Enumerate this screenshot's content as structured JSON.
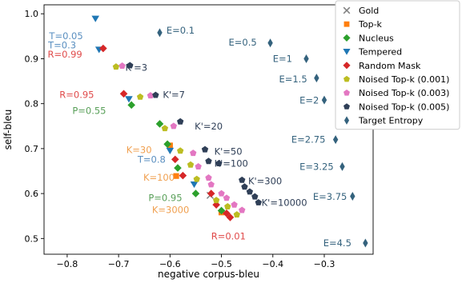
{
  "chart_data": {
    "type": "scatter",
    "xlabel": "negative corpus-bleu",
    "ylabel": "self-bleu",
    "xlim": [
      -0.845,
      -0.205
    ],
    "ylim": [
      0.465,
      1.02
    ],
    "xticks": [
      -0.8,
      -0.7,
      -0.6,
      -0.5,
      -0.4,
      -0.3
    ],
    "xtick_labels": [
      "−0.8",
      "−0.7",
      "−0.6",
      "−0.5",
      "−0.4",
      "−0.3"
    ],
    "yticks": [
      0.5,
      0.6,
      0.7,
      0.8,
      0.9,
      1.0
    ],
    "ytick_labels": [
      "0.5",
      "0.6",
      "0.7",
      "0.8",
      "0.9",
      "1.0"
    ],
    "grid": false,
    "legend_position": "top-right, outside plot",
    "series": [
      {
        "name": "Gold",
        "marker": "x",
        "color": "#7f7f7f",
        "points": [
          [
            -0.522,
            0.596
          ]
        ]
      },
      {
        "name": "Top-k",
        "marker": "square",
        "color": "#ff7f0e",
        "points": [
          [
            -0.6,
            0.707
          ],
          [
            -0.588,
            0.639
          ],
          [
            -0.5,
            0.558
          ]
        ]
      },
      {
        "name": "Nucleus",
        "marker": "diamond",
        "color": "#2ca02c",
        "points": [
          [
            -0.675,
            0.797
          ],
          [
            -0.62,
            0.755
          ],
          [
            -0.605,
            0.71
          ],
          [
            -0.585,
            0.657
          ],
          [
            -0.55,
            0.6
          ],
          [
            -0.5,
            0.562
          ]
        ]
      },
      {
        "name": "Tempered",
        "marker": "triangle-down",
        "color": "#1f77b4",
        "points": [
          [
            -0.745,
            0.989
          ],
          [
            -0.738,
            0.92
          ],
          [
            -0.68,
            0.81
          ],
          [
            -0.6,
            0.695
          ],
          [
            -0.553,
            0.62
          ]
        ]
      },
      {
        "name": "Random Mask",
        "marker": "diamond",
        "color": "#d62728",
        "points": [
          [
            -0.73,
            0.923
          ],
          [
            -0.69,
            0.822
          ],
          [
            -0.59,
            0.676
          ],
          [
            -0.575,
            0.64
          ],
          [
            -0.52,
            0.6
          ],
          [
            -0.51,
            0.575
          ],
          [
            -0.49,
            0.556
          ],
          [
            -0.483,
            0.547
          ]
        ]
      },
      {
        "name": "Noised Top-k (0.001)",
        "marker": "pentagon",
        "color": "#bcbd22",
        "points": [
          [
            -0.705,
            0.882
          ],
          [
            -0.658,
            0.815
          ],
          [
            -0.61,
            0.745
          ],
          [
            -0.58,
            0.695
          ],
          [
            -0.56,
            0.664
          ],
          [
            -0.548,
            0.632
          ],
          [
            -0.51,
            0.585
          ],
          [
            -0.488,
            0.571
          ],
          [
            -0.47,
            0.553
          ]
        ]
      },
      {
        "name": "Noised Top-k (0.003)",
        "marker": "pentagon",
        "color": "#e377c2",
        "points": [
          [
            -0.693,
            0.884
          ],
          [
            -0.638,
            0.818
          ],
          [
            -0.593,
            0.75
          ],
          [
            -0.555,
            0.69
          ],
          [
            -0.545,
            0.66
          ],
          [
            -0.525,
            0.635
          ],
          [
            -0.52,
            0.62
          ],
          [
            -0.5,
            0.6
          ],
          [
            -0.49,
            0.59
          ],
          [
            -0.475,
            0.575
          ],
          [
            -0.46,
            0.563
          ]
        ]
      },
      {
        "name": "Noised Top-k (0.005)",
        "marker": "pentagon",
        "color": "#2f3f57",
        "points": [
          [
            -0.678,
            0.885
          ],
          [
            -0.628,
            0.819
          ],
          [
            -0.58,
            0.76
          ],
          [
            -0.532,
            0.698
          ],
          [
            -0.525,
            0.672
          ],
          [
            -0.505,
            0.667
          ],
          [
            -0.46,
            0.63
          ],
          [
            -0.455,
            0.615
          ],
          [
            -0.445,
            0.604
          ],
          [
            -0.435,
            0.593
          ],
          [
            -0.428,
            0.58
          ]
        ]
      },
      {
        "name": "Target Entropy",
        "marker": "thin-diamond",
        "color": "#34627d",
        "points": [
          [
            -0.62,
            0.958
          ],
          [
            -0.405,
            0.935
          ],
          [
            -0.335,
            0.9
          ],
          [
            -0.315,
            0.857
          ],
          [
            -0.3,
            0.808
          ],
          [
            -0.278,
            0.72
          ],
          [
            -0.265,
            0.66
          ],
          [
            -0.245,
            0.594
          ],
          [
            -0.22,
            0.49
          ]
        ]
      }
    ],
    "annotations": [
      {
        "text": "T=0.05",
        "x": -0.835,
        "y": 0.951,
        "color": "#5a8fc0"
      },
      {
        "text": "T=0.3",
        "x": -0.837,
        "y": 0.93,
        "color": "#5a8fc0"
      },
      {
        "text": "R=0.99",
        "x": -0.838,
        "y": 0.91,
        "color": "#e04b4b"
      },
      {
        "text": "K'=3",
        "x": -0.687,
        "y": 0.88,
        "color": "#2f3f57"
      },
      {
        "text": "R=0.95",
        "x": -0.815,
        "y": 0.82,
        "color": "#e04b4b"
      },
      {
        "text": "K'=7",
        "x": -0.614,
        "y": 0.82,
        "color": "#2f3f57"
      },
      {
        "text": "P=0.55",
        "x": -0.79,
        "y": 0.784,
        "color": "#5aa05a"
      },
      {
        "text": "K'=20",
        "x": -0.552,
        "y": 0.75,
        "color": "#2f3f57"
      },
      {
        "text": "K=30",
        "x": -0.685,
        "y": 0.697,
        "color": "#f0a050"
      },
      {
        "text": "T=0.8",
        "x": -0.663,
        "y": 0.676,
        "color": "#5a8fc0"
      },
      {
        "text": "K'=50",
        "x": -0.514,
        "y": 0.694,
        "color": "#2f3f57"
      },
      {
        "text": "K'=100",
        "x": -0.514,
        "y": 0.667,
        "color": "#2f3f57"
      },
      {
        "text": "K=100",
        "x": -0.652,
        "y": 0.636,
        "color": "#f0a050"
      },
      {
        "text": "K'=300",
        "x": -0.448,
        "y": 0.628,
        "color": "#2f3f57"
      },
      {
        "text": "P=0.95",
        "x": -0.642,
        "y": 0.59,
        "color": "#5aa05a"
      },
      {
        "text": "K'=10000",
        "x": -0.422,
        "y": 0.58,
        "color": "#2f3f57"
      },
      {
        "text": "K=3000",
        "x": -0.635,
        "y": 0.564,
        "color": "#f0a050"
      },
      {
        "text": "R=0.01",
        "x": -0.52,
        "y": 0.505,
        "color": "#e04b4b"
      },
      {
        "text": "E=0.1",
        "x": -0.607,
        "y": 0.963,
        "color": "#34627d"
      },
      {
        "text": "E=0.5",
        "x": -0.486,
        "y": 0.936,
        "color": "#34627d"
      },
      {
        "text": "E=1",
        "x": -0.4,
        "y": 0.9,
        "color": "#34627d"
      },
      {
        "text": "E=1.5",
        "x": -0.388,
        "y": 0.855,
        "color": "#34627d"
      },
      {
        "text": "E=2",
        "x": -0.348,
        "y": 0.807,
        "color": "#34627d"
      },
      {
        "text": "E=2.75",
        "x": -0.364,
        "y": 0.72,
        "color": "#34627d"
      },
      {
        "text": "E=3.25",
        "x": -0.348,
        "y": 0.66,
        "color": "#34627d"
      },
      {
        "text": "E=3.75",
        "x": -0.322,
        "y": 0.593,
        "color": "#34627d"
      },
      {
        "text": "E=4.5",
        "x": -0.302,
        "y": 0.49,
        "color": "#34627d"
      }
    ]
  }
}
